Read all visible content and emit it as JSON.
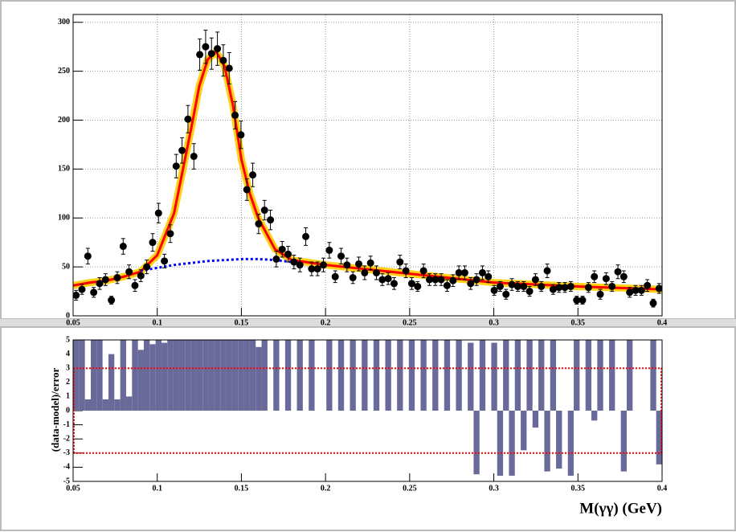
{
  "chart_data": [
    {
      "type": "scatter",
      "x": [
        0.05175,
        0.05525,
        0.05875,
        0.06225,
        0.06575,
        0.06925,
        0.07275,
        0.07625,
        0.07975,
        0.08325,
        0.08675,
        0.09025,
        0.09375,
        0.09725,
        0.10075,
        0.10425,
        0.10775,
        0.11125,
        0.11475,
        0.11825,
        0.12175,
        0.12525,
        0.12875,
        0.13225,
        0.13575,
        0.13925,
        0.14275,
        0.14625,
        0.14975,
        0.15325,
        0.15675,
        0.16025,
        0.16375,
        0.16725,
        0.17075,
        0.17425,
        0.17775,
        0.18125,
        0.18475,
        0.18825,
        0.19175,
        0.19525,
        0.19875,
        0.20225,
        0.20575,
        0.20925,
        0.21275,
        0.21625,
        0.21975,
        0.22325,
        0.22675,
        0.23025,
        0.23375,
        0.23725,
        0.24075,
        0.24425,
        0.24775,
        0.25125,
        0.25475,
        0.25825,
        0.26175,
        0.26525,
        0.26875,
        0.27225,
        0.27575,
        0.27925,
        0.28275,
        0.28625,
        0.28975,
        0.29325,
        0.29675,
        0.30025,
        0.30375,
        0.30725,
        0.31075,
        0.31425,
        0.31775,
        0.32125,
        0.32475,
        0.32825,
        0.33175,
        0.33525,
        0.33875,
        0.34225,
        0.34575,
        0.34925,
        0.35275,
        0.35625,
        0.35975,
        0.36325,
        0.36675,
        0.37025,
        0.37375,
        0.37725,
        0.38075,
        0.38425,
        0.38775,
        0.39125,
        0.39475,
        0.39825
      ],
      "values": [
        21,
        27,
        61,
        24,
        33,
        37,
        16,
        39,
        71,
        45,
        31,
        41,
        50,
        75,
        105,
        56,
        84,
        153,
        169,
        201,
        163,
        267,
        275,
        268,
        273,
        261,
        253,
        205,
        185,
        129,
        144,
        94,
        108,
        98,
        58,
        68,
        63,
        55,
        52,
        81,
        48,
        48,
        52,
        67,
        40,
        61,
        52,
        39,
        53,
        44,
        54,
        44,
        37,
        38,
        33,
        55,
        46,
        33,
        30,
        46,
        37,
        37,
        37,
        31,
        36,
        44,
        44,
        33,
        37,
        44,
        40,
        26,
        30,
        22,
        32,
        30,
        30,
        25,
        37,
        30,
        46,
        27,
        29,
        29,
        30,
        16,
        16,
        29,
        40,
        22,
        38,
        30,
        45,
        40,
        24,
        26,
        26,
        31,
        13,
        28
      ],
      "errors": [
        5,
        5,
        8,
        5,
        6,
        6,
        4,
        6,
        8,
        7,
        6,
        6,
        7,
        9,
        10,
        7,
        9,
        12,
        13,
        14,
        13,
        16,
        17,
        16,
        17,
        16,
        16,
        14,
        14,
        11,
        12,
        10,
        10,
        10,
        8,
        8,
        8,
        7,
        7,
        9,
        7,
        7,
        7,
        8,
        6,
        8,
        7,
        6,
        7,
        7,
        7,
        7,
        6,
        6,
        6,
        7,
        7,
        6,
        5,
        7,
        6,
        6,
        6,
        6,
        6,
        7,
        7,
        6,
        6,
        7,
        6,
        5,
        5,
        5,
        6,
        5,
        5,
        5,
        6,
        5,
        7,
        5,
        5,
        5,
        5,
        4,
        4,
        5,
        6,
        5,
        6,
        5,
        7,
        6,
        5,
        5,
        5,
        6,
        4,
        5
      ],
      "color": "#000000",
      "fit_curve": {
        "x": [
          0.05,
          0.06,
          0.07,
          0.08,
          0.09,
          0.1,
          0.11,
          0.12,
          0.125,
          0.13,
          0.135,
          0.14,
          0.145,
          0.15,
          0.155,
          0.16,
          0.17,
          0.18,
          0.2,
          0.25,
          0.3,
          0.35,
          0.4
        ],
        "values": [
          31,
          34,
          36,
          40,
          45,
          62,
          105,
          190,
          235,
          262,
          270,
          255,
          215,
          160,
          125,
          100,
          68,
          57,
          52,
          43,
          34,
          30,
          27
        ],
        "color": "#ff0000",
        "band_color": "#ffcc00"
      },
      "background_curve": {
        "x": [
          0.09,
          0.1,
          0.11,
          0.12,
          0.13,
          0.14,
          0.15,
          0.16,
          0.17,
          0.18
        ],
        "values": [
          46,
          49,
          52,
          54,
          56,
          57,
          58,
          58,
          57,
          55
        ],
        "color": "#0000ff"
      },
      "xlim": [
        0.05,
        0.4
      ],
      "ylim": [
        0,
        308
      ],
      "xticks": [
        0.05,
        0.1,
        0.15,
        0.2,
        0.25,
        0.3,
        0.35,
        0.4
      ],
      "yticks": [
        0,
        50,
        100,
        150,
        200,
        250,
        300
      ],
      "grid": true
    },
    {
      "type": "bar",
      "values": [
        5,
        5,
        0.8,
        5,
        5,
        0.8,
        4,
        0.8,
        5,
        1,
        5,
        4.3,
        5,
        4.7,
        5,
        4.8,
        5,
        5,
        5,
        5,
        5,
        5,
        5,
        5,
        5,
        5,
        5,
        5,
        5,
        5,
        5,
        4.5,
        5,
        0,
        5,
        0,
        5,
        0,
        5,
        0,
        5,
        0,
        0,
        5,
        0,
        5,
        0,
        5,
        0,
        5,
        0,
        5,
        0,
        5,
        0,
        5,
        0,
        5,
        0,
        5,
        0,
        5,
        0,
        5,
        0,
        5,
        0,
        4.8,
        -4.5,
        5,
        0,
        4.8,
        -4.6,
        5,
        -4.6,
        5,
        -2.8,
        5,
        -1.2,
        5,
        -4.3,
        5,
        -4.1,
        0,
        -4.6,
        5,
        0,
        5,
        -0.7,
        5,
        0,
        5,
        0,
        -4.3,
        5,
        0,
        0,
        0,
        5,
        -3.8
      ],
      "color": "#6a6a9a",
      "xlim": [
        0.05,
        0.4
      ],
      "ylim": [
        -5,
        5
      ],
      "xticks": [
        0.05,
        0.1,
        0.15,
        0.2,
        0.25,
        0.3,
        0.35,
        0.4
      ],
      "yticks": [
        -5,
        -4,
        -3,
        -2,
        -1,
        0,
        1,
        2,
        3,
        4,
        5
      ],
      "reference_lines": [
        -3,
        3
      ],
      "reference_color": "#ff0000",
      "y_label": "(data-model)/error",
      "x_label": "M(γγ) (GeV)"
    }
  ]
}
